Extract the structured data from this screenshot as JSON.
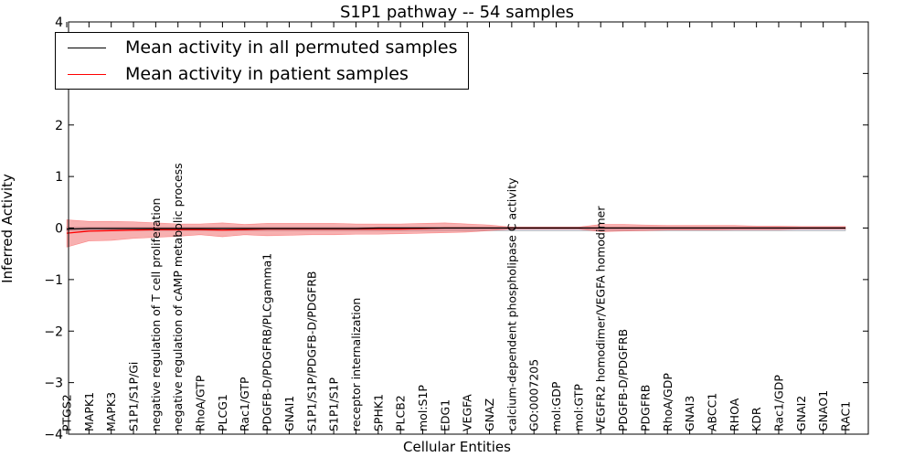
{
  "chart_data": {
    "type": "line",
    "title": "S1P1 pathway -- 54 samples",
    "xlabel": "Cellular Entities",
    "ylabel": "Inferred Activity",
    "ylim": [
      -4,
      4
    ],
    "yticks": [
      4,
      3,
      2,
      1,
      0,
      -1,
      -2,
      -3,
      -4
    ],
    "ytick_labels": [
      "4",
      "3",
      "2",
      "1",
      "0",
      "−1",
      "−2",
      "−3",
      "−4"
    ],
    "grid": false,
    "legend_position": "top-left",
    "categories": [
      "PTGS2",
      "MAPK1",
      "MAPK3",
      "S1P1/S1P/Gi",
      "negative regulation of T cell proliferation",
      "negative regulation of cAMP metabolic process",
      "RhoA/GTP",
      "PLCG1",
      "Rac1/GTP",
      "PDGFB-D/PDGFRB/PLCgamma1",
      "GNAI1",
      "S1P1/S1P/PDGFB-D/PDGFRB",
      "S1P1/S1P",
      "receptor internalization",
      "SPHK1",
      "PLCB2",
      "mol:S1P",
      "EDG1",
      "VEGFA",
      "GNAZ",
      "calcium-dependent phospholipase C activity",
      "GO:0007205",
      "mol:GDP",
      "mol:GTP",
      "VEGFR2 homodimer/VEGFA homodimer",
      "PDGFB-D/PDGFRB",
      "PDGFRB",
      "RhoA/GDP",
      "GNAI3",
      "ABCC1",
      "RHOA",
      "KDR",
      "Rac1/GDP",
      "GNAI2",
      "GNAO1",
      "RAC1"
    ],
    "series": [
      {
        "name": "Mean activity in all permuted samples",
        "color": "#000000",
        "values": [
          -0.02,
          -0.01,
          -0.01,
          -0.01,
          -0.01,
          -0.01,
          -0.01,
          -0.01,
          -0.01,
          -0.01,
          -0.01,
          -0.01,
          -0.01,
          -0.01,
          0.0,
          0.0,
          0.0,
          0.0,
          0.0,
          0.0,
          0.0,
          0.0,
          0.0,
          0.0,
          0.0,
          0.0,
          0.0,
          0.0,
          0.0,
          0.0,
          0.0,
          0.0,
          0.0,
          0.0,
          0.0,
          0.0
        ],
        "band_upper": [
          0.02,
          0.02,
          0.02,
          0.02,
          0.02,
          0.02,
          0.02,
          0.02,
          0.02,
          0.02,
          0.02,
          0.02,
          0.02,
          0.02,
          0.02,
          0.02,
          0.02,
          0.02,
          0.02,
          0.02,
          0.02,
          0.02,
          0.02,
          0.02,
          0.02,
          0.02,
          0.02,
          0.02,
          0.02,
          0.02,
          0.02,
          0.02,
          0.02,
          0.02,
          0.02,
          0.02
        ],
        "band_lower": [
          -0.05,
          -0.05,
          -0.05,
          -0.05,
          -0.05,
          -0.05,
          -0.05,
          -0.05,
          -0.05,
          -0.05,
          -0.05,
          -0.05,
          -0.05,
          -0.05,
          -0.05,
          -0.05,
          -0.05,
          -0.05,
          -0.05,
          -0.05,
          -0.05,
          -0.05,
          -0.05,
          -0.05,
          -0.05,
          -0.05,
          -0.05,
          -0.05,
          -0.05,
          -0.05,
          -0.05,
          -0.05,
          -0.05,
          -0.05,
          -0.05,
          -0.05
        ]
      },
      {
        "name": "Mean activity in patient samples",
        "color": "#ff0000",
        "values": [
          -0.1,
          -0.06,
          -0.05,
          -0.04,
          -0.03,
          -0.03,
          -0.03,
          -0.04,
          -0.03,
          -0.02,
          -0.02,
          -0.02,
          -0.02,
          -0.02,
          -0.02,
          -0.02,
          -0.01,
          0.0,
          0.0,
          0.0,
          0.0,
          0.0,
          0.0,
          0.0,
          0.0,
          0.0,
          0.0,
          0.0,
          0.0,
          0.0,
          0.0,
          0.0,
          0.0,
          0.0,
          0.0,
          0.0
        ],
        "band_upper": [
          0.16,
          0.13,
          0.13,
          0.12,
          0.1,
          0.08,
          0.08,
          0.1,
          0.07,
          0.09,
          0.09,
          0.09,
          0.09,
          0.08,
          0.08,
          0.08,
          0.09,
          0.1,
          0.08,
          0.06,
          0.02,
          0.02,
          0.02,
          0.02,
          0.07,
          0.07,
          0.06,
          0.05,
          0.05,
          0.05,
          0.05,
          0.04,
          0.04,
          0.03,
          0.03,
          0.03
        ],
        "band_lower": [
          -0.37,
          -0.25,
          -0.24,
          -0.2,
          -0.18,
          -0.16,
          -0.13,
          -0.17,
          -0.13,
          -0.15,
          -0.14,
          -0.13,
          -0.13,
          -0.12,
          -0.12,
          -0.11,
          -0.1,
          -0.09,
          -0.08,
          -0.05,
          -0.02,
          -0.02,
          -0.02,
          -0.02,
          -0.07,
          -0.06,
          -0.05,
          -0.04,
          -0.04,
          -0.04,
          -0.03,
          -0.03,
          -0.03,
          -0.02,
          -0.02,
          -0.02
        ]
      }
    ]
  }
}
